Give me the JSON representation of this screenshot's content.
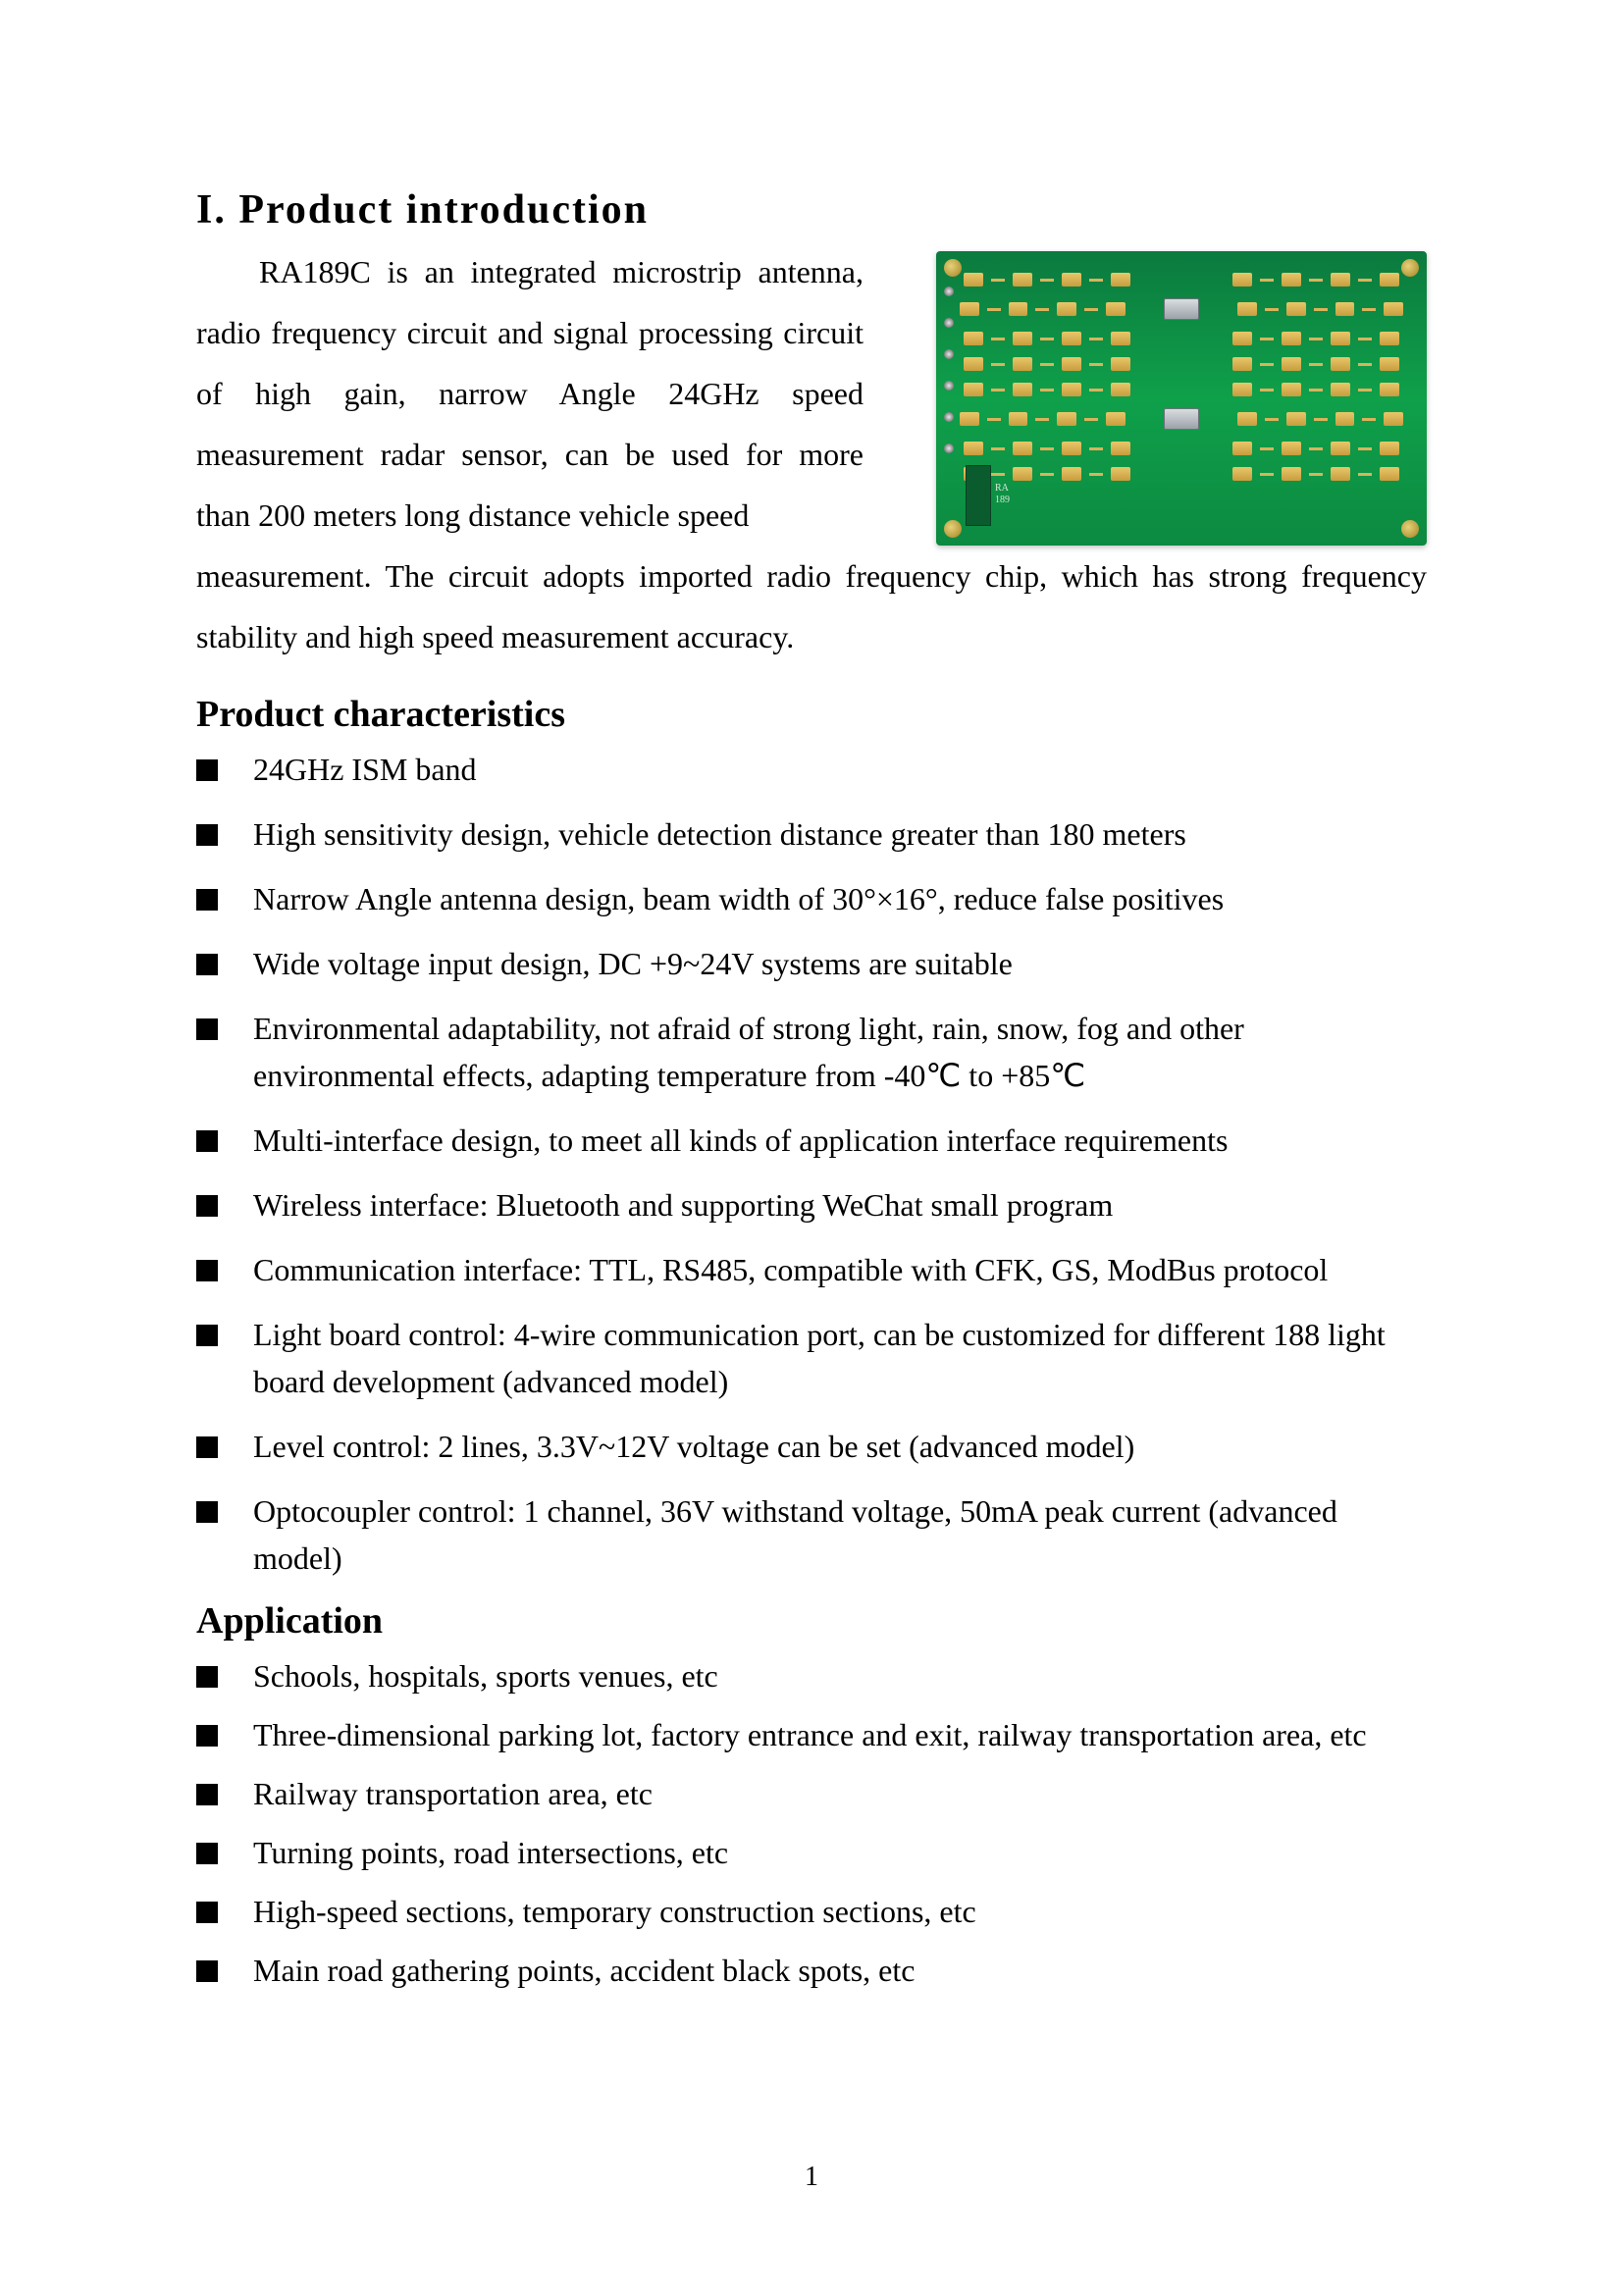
{
  "headings": {
    "intro": "I. Product introduction",
    "characteristics": "Product characteristics",
    "application": "Application"
  },
  "intro_paragraph_1": "RA189C is an integrated microstrip antenna, radio frequency circuit and signal processing circuit of high gain, narrow Angle 24GHz speed measurement radar sensor, can be used for more than 200 meters long distance vehicle speed",
  "intro_paragraph_2": "measurement. The circuit adopts imported radio frequency chip, which has strong frequency stability and high speed measurement accuracy.",
  "characteristics": [
    "24GHz ISM band",
    "High sensitivity design, vehicle detection distance greater than 180 meters",
    "Narrow Angle antenna design, beam width of  30°×16°, reduce false positives",
    "Wide voltage input design, DC +9~24V systems are suitable",
    "Environmental adaptability, not afraid of strong light, rain, snow, fog and other environmental effects, adapting temperature from -40℃ to +85℃",
    "Multi-interface design, to meet all kinds of application interface requirements",
    "Wireless interface: Bluetooth and supporting WeChat small program",
    "Communication interface: TTL, RS485, compatible with CFK, GS,  ModBus protocol",
    "Light board control: 4-wire communication port, can be customized for different 188 light board development (advanced model)",
    "Level control: 2 lines, 3.3V~12V voltage can be set (advanced model)",
    "Optocoupler control: 1 channel, 36V withstand voltage, 50mA peak current (advanced model)"
  ],
  "applications": [
    "Schools, hospitals, sports venues, etc",
    "Three-dimensional parking lot, factory entrance and exit, railway transportation area, etc",
    "Railway transportation area, etc",
    "Turning points, road intersections, etc",
    "High-speed sections, temporary construction sections, etc",
    "Main road gathering points, accident black spots, etc"
  ],
  "page_number": "1",
  "pcb_image": {
    "type": "infographic",
    "description": "green PCB with gold antenna pads and two silver ICs",
    "background_gradient": [
      "#0b7a3e",
      "#0fa04a",
      "#0c8a41"
    ],
    "pad_color": "#e8c86a",
    "screw_color": "#b79a3c",
    "chip_color": "#b7bdc2",
    "rows": 8,
    "pads_per_side": 4
  },
  "colors": {
    "text": "#000000",
    "background": "#ffffff"
  },
  "fonts": {
    "body_family": "Times New Roman",
    "h1_size_pt": 21,
    "h2_size_pt": 19,
    "body_size_pt": 16
  }
}
